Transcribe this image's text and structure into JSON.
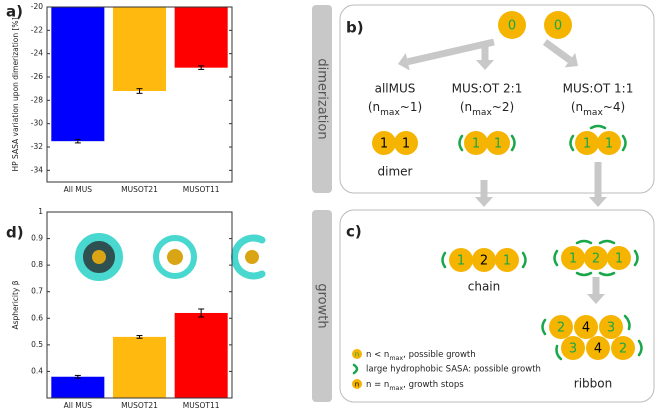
{
  "chart_data": [
    {
      "type": "bar",
      "label": "a)",
      "ylabel": "HP SASA variation upon dimerization [%]",
      "categories": [
        "All MUS",
        "MUSOT21",
        "MUSOT11"
      ],
      "values": [
        -31.5,
        -27.2,
        -25.2
      ],
      "errors": [
        0.15,
        0.2,
        0.15
      ],
      "colors": [
        "#0000ff",
        "#ffb90f",
        "#ff0000"
      ],
      "ylim": [
        -35,
        -20
      ],
      "yticks": [
        -20,
        -22,
        -24,
        -26,
        -28,
        -30,
        -32,
        -34
      ]
    },
    {
      "type": "bar",
      "label": "d)",
      "ylabel": "Asphericity β",
      "categories": [
        "All MUS",
        "MUSOT21",
        "MUSOT11"
      ],
      "values": [
        0.38,
        0.53,
        0.62
      ],
      "errors": [
        0.005,
        0.005,
        0.015
      ],
      "colors": [
        "#0000ff",
        "#ffb90f",
        "#ff0000"
      ],
      "ylim": [
        0.3,
        1
      ],
      "yticks": [
        0.4,
        0.5,
        0.6,
        0.7,
        0.8,
        0.9,
        1
      ]
    }
  ],
  "diagram": {
    "tabs": [
      "dimerization",
      "growth"
    ],
    "b": {
      "label": "b)",
      "start": [
        "0",
        "0"
      ],
      "groups": [
        {
          "name": "allMUS",
          "paren": "(n",
          "sub": "max",
          "rest": "~1)",
          "dimer": [
            "1",
            "1"
          ]
        },
        {
          "name": "MUS:OT 2:1",
          "paren": "(n",
          "sub": "max",
          "rest": "~2)",
          "dimer": [
            "1",
            "1"
          ]
        },
        {
          "name": "MUS:OT 1:1",
          "paren": "(n",
          "sub": "max",
          "rest": "~4)",
          "dimer": [
            "1",
            "1"
          ]
        }
      ],
      "dimer_label": "dimer"
    },
    "c": {
      "label": "c)",
      "chain": [
        "1",
        "2",
        "1"
      ],
      "chain_label": "chain",
      "ribbon_top": [
        "1",
        "2",
        "1"
      ],
      "ribbon": [
        "2",
        "4",
        "3",
        "3",
        "4",
        "2"
      ],
      "ribbon_label": "ribbon",
      "legend": [
        {
          "icon": "n",
          "text": "n < n",
          "sub": "max",
          "rest": ", possible growth"
        },
        {
          "text": "large hydrophobic SASA: possible growth"
        },
        {
          "icon": "n",
          "text": "n = n",
          "sub": "max",
          "rest": ", growth stops"
        }
      ]
    }
  }
}
